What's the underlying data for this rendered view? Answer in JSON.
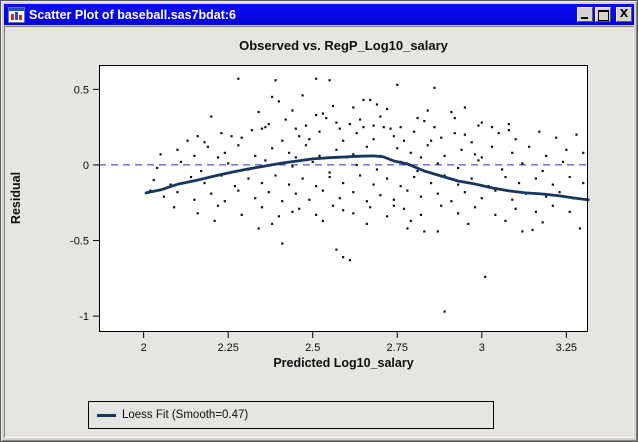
{
  "window": {
    "title": "Scatter Plot of baseball.sas7bdat:6"
  },
  "chart_data": {
    "type": "scatter",
    "title": "Observed vs. RegP_Log10_salary",
    "xlabel": "Predicted Log10_salary",
    "ylabel": "Residual",
    "xlim": [
      1.868,
      3.314
    ],
    "ylim": [
      -1.105,
      0.661
    ],
    "x_ticks": [
      2,
      2.25,
      2.5,
      2.75,
      3,
      3.25
    ],
    "x_tick_labels": [
      "2",
      "2.25",
      "2.5",
      "2.75",
      "3",
      "3.25"
    ],
    "y_ticks": [
      0.5,
      0,
      -0.5,
      -1
    ],
    "y_tick_labels": [
      "0.5",
      "0",
      "-0.5",
      "-1"
    ],
    "grid": false,
    "reference_line_y": 0,
    "legend": {
      "label": "Loess Fit (Smooth=0.47)",
      "position": "bottom-left"
    },
    "colors": {
      "loess": "#17375e",
      "reference": "#2a2ac8",
      "point": "#101010",
      "plot_bg": "#ffffff"
    },
    "series": [
      {
        "name": "Residuals",
        "type": "scatter",
        "points": [
          [
            2.28,
            0.57
          ],
          [
            2.39,
            0.56
          ],
          [
            2.51,
            0.57
          ],
          [
            2.55,
            0.56
          ],
          [
            2.75,
            0.53
          ],
          [
            2.86,
            0.51
          ],
          [
            2.34,
            0.35
          ],
          [
            2.38,
            0.45
          ],
          [
            2.4,
            0.42
          ],
          [
            2.44,
            0.36
          ],
          [
            2.47,
            0.46
          ],
          [
            2.56,
            0.39
          ],
          [
            2.62,
            0.38
          ],
          [
            2.65,
            0.43
          ],
          [
            2.67,
            0.43
          ],
          [
            2.69,
            0.4
          ],
          [
            2.72,
            0.37
          ],
          [
            2.84,
            0.36
          ],
          [
            2.91,
            0.35
          ],
          [
            2.95,
            0.38
          ],
          [
            2.2,
            0.32
          ],
          [
            2.35,
            0.24
          ],
          [
            2.36,
            0.25
          ],
          [
            2.37,
            0.27
          ],
          [
            2.42,
            0.3
          ],
          [
            2.45,
            0.24
          ],
          [
            2.48,
            0.26
          ],
          [
            2.51,
            0.33
          ],
          [
            2.53,
            0.34
          ],
          [
            2.54,
            0.31
          ],
          [
            2.57,
            0.28
          ],
          [
            2.58,
            0.24
          ],
          [
            2.61,
            0.27
          ],
          [
            2.64,
            0.3
          ],
          [
            2.65,
            0.25
          ],
          [
            2.68,
            0.26
          ],
          [
            2.7,
            0.32
          ],
          [
            2.71,
            0.25
          ],
          [
            2.73,
            0.24
          ],
          [
            2.76,
            0.25
          ],
          [
            2.81,
            0.31
          ],
          [
            2.83,
            0.29
          ],
          [
            2.86,
            0.25
          ],
          [
            2.92,
            0.31
          ],
          [
            2.99,
            0.26
          ],
          [
            3.0,
            0.28
          ],
          [
            3.03,
            0.25
          ],
          [
            3.08,
            0.27
          ],
          [
            2.13,
            0.16
          ],
          [
            2.18,
            0.15
          ],
          [
            2.16,
            0.19
          ],
          [
            2.23,
            0.21
          ],
          [
            2.26,
            0.19
          ],
          [
            2.29,
            0.18
          ],
          [
            2.32,
            0.23
          ],
          [
            2.41,
            0.16
          ],
          [
            2.46,
            0.19
          ],
          [
            2.49,
            0.17
          ],
          [
            2.52,
            0.22
          ],
          [
            2.59,
            0.16
          ],
          [
            2.63,
            0.21
          ],
          [
            2.68,
            0.17
          ],
          [
            2.74,
            0.19
          ],
          [
            2.77,
            0.16
          ],
          [
            2.8,
            0.22
          ],
          [
            2.85,
            0.16
          ],
          [
            2.88,
            0.18
          ],
          [
            2.92,
            0.21
          ],
          [
            2.95,
            0.2
          ],
          [
            2.97,
            0.15
          ],
          [
            3.05,
            0.21
          ],
          [
            3.08,
            0.23
          ],
          [
            3.1,
            0.17
          ],
          [
            3.17,
            0.22
          ],
          [
            3.22,
            0.18
          ],
          [
            3.28,
            0.2
          ],
          [
            2.05,
            0.07
          ],
          [
            2.1,
            0.1
          ],
          [
            2.15,
            0.06
          ],
          [
            2.19,
            0.12
          ],
          [
            2.22,
            0.05
          ],
          [
            2.24,
            0.08
          ],
          [
            2.28,
            0.13
          ],
          [
            2.33,
            0.06
          ],
          [
            2.38,
            0.11
          ],
          [
            2.43,
            0.08
          ],
          [
            2.45,
            0.05
          ],
          [
            2.48,
            0.13
          ],
          [
            2.52,
            0.06
          ],
          [
            2.57,
            0.1
          ],
          [
            2.6,
            0.05
          ],
          [
            2.62,
            0.07
          ],
          [
            2.66,
            0.12
          ],
          [
            2.7,
            0.06
          ],
          [
            2.75,
            0.11
          ],
          [
            2.79,
            0.08
          ],
          [
            2.82,
            0.05
          ],
          [
            2.84,
            0.13
          ],
          [
            2.89,
            0.06
          ],
          [
            2.94,
            0.1
          ],
          [
            2.98,
            0.07
          ],
          [
            3.0,
            0.05
          ],
          [
            3.03,
            0.12
          ],
          [
            3.09,
            0.08
          ],
          [
            3.14,
            0.12
          ],
          [
            3.19,
            0.06
          ],
          [
            3.25,
            0.1
          ],
          [
            3.3,
            0.08
          ],
          [
            2.04,
            -0.02
          ],
          [
            2.11,
            0.02
          ],
          [
            2.17,
            -0.04
          ],
          [
            2.25,
            0.01
          ],
          [
            2.31,
            -0.03
          ],
          [
            2.36,
            0.03
          ],
          [
            2.44,
            -0.01
          ],
          [
            2.5,
            0.02
          ],
          [
            2.55,
            -0.05
          ],
          [
            2.63,
            0.0
          ],
          [
            2.69,
            -0.03
          ],
          [
            2.76,
            0.02
          ],
          [
            2.81,
            -0.04
          ],
          [
            2.87,
            0.01
          ],
          [
            2.93,
            -0.02
          ],
          [
            2.99,
            0.03
          ],
          [
            3.06,
            -0.03
          ],
          [
            3.12,
            0.01
          ],
          [
            3.18,
            -0.04
          ],
          [
            3.24,
            0.02
          ],
          [
            2.03,
            -0.1
          ],
          [
            2.08,
            -0.13
          ],
          [
            2.14,
            -0.08
          ],
          [
            2.18,
            -0.12
          ],
          [
            2.23,
            -0.07
          ],
          [
            2.27,
            -0.14
          ],
          [
            2.31,
            -0.09
          ],
          [
            2.35,
            -0.12
          ],
          [
            2.39,
            -0.07
          ],
          [
            2.43,
            -0.13
          ],
          [
            2.47,
            -0.09
          ],
          [
            2.51,
            -0.14
          ],
          [
            2.55,
            -0.08
          ],
          [
            2.59,
            -0.12
          ],
          [
            2.64,
            -0.07
          ],
          [
            2.68,
            -0.13
          ],
          [
            2.72,
            -0.09
          ],
          [
            2.76,
            -0.14
          ],
          [
            2.8,
            -0.08
          ],
          [
            2.85,
            -0.12
          ],
          [
            2.89,
            -0.07
          ],
          [
            2.93,
            -0.13
          ],
          [
            2.97,
            -0.09
          ],
          [
            3.02,
            -0.14
          ],
          [
            3.07,
            -0.08
          ],
          [
            3.11,
            -0.12
          ],
          [
            3.16,
            -0.09
          ],
          [
            3.21,
            -0.13
          ],
          [
            3.26,
            -0.08
          ],
          [
            3.3,
            -0.12
          ],
          [
            2.02,
            -0.17
          ],
          [
            2.06,
            -0.21
          ],
          [
            2.1,
            -0.18
          ],
          [
            2.15,
            -0.23
          ],
          [
            2.2,
            -0.19
          ],
          [
            2.24,
            -0.24
          ],
          [
            2.28,
            -0.17
          ],
          [
            2.33,
            -0.22
          ],
          [
            2.37,
            -0.18
          ],
          [
            2.41,
            -0.24
          ],
          [
            2.45,
            -0.19
          ],
          [
            2.49,
            -0.23
          ],
          [
            2.53,
            -0.17
          ],
          [
            2.58,
            -0.22
          ],
          [
            2.62,
            -0.18
          ],
          [
            2.66,
            -0.24
          ],
          [
            2.7,
            -0.2
          ],
          [
            2.74,
            -0.23
          ],
          [
            2.78,
            -0.17
          ],
          [
            2.82,
            -0.21
          ],
          [
            2.87,
            -0.19
          ],
          [
            2.91,
            -0.24
          ],
          [
            2.95,
            -0.18
          ],
          [
            3.0,
            -0.22
          ],
          [
            3.04,
            -0.17
          ],
          [
            3.09,
            -0.23
          ],
          [
            3.13,
            -0.19
          ],
          [
            3.19,
            -0.21
          ],
          [
            3.23,
            -0.18
          ],
          [
            3.27,
            -0.22
          ],
          [
            2.09,
            -0.28
          ],
          [
            2.16,
            -0.32
          ],
          [
            2.22,
            -0.27
          ],
          [
            2.29,
            -0.33
          ],
          [
            2.35,
            -0.28
          ],
          [
            2.4,
            -0.34
          ],
          [
            2.44,
            -0.31
          ],
          [
            2.46,
            -0.29
          ],
          [
            2.51,
            -0.33
          ],
          [
            2.56,
            -0.27
          ],
          [
            2.59,
            -0.3
          ],
          [
            2.62,
            -0.32
          ],
          [
            2.67,
            -0.28
          ],
          [
            2.72,
            -0.34
          ],
          [
            2.74,
            -0.27
          ],
          [
            2.77,
            -0.29
          ],
          [
            2.82,
            -0.33
          ],
          [
            2.88,
            -0.27
          ],
          [
            2.93,
            -0.32
          ],
          [
            2.98,
            -0.28
          ],
          [
            3.04,
            -0.33
          ],
          [
            3.1,
            -0.29
          ],
          [
            3.16,
            -0.31
          ],
          [
            3.21,
            -0.27
          ],
          [
            3.26,
            -0.31
          ],
          [
            2.21,
            -0.37
          ],
          [
            2.38,
            -0.39
          ],
          [
            2.53,
            -0.37
          ],
          [
            2.66,
            -0.39
          ],
          [
            2.79,
            -0.37
          ],
          [
            2.96,
            -0.39
          ],
          [
            3.07,
            -0.37
          ],
          [
            3.18,
            -0.38
          ],
          [
            2.34,
            -0.42
          ],
          [
            2.41,
            -0.52
          ],
          [
            2.57,
            -0.56
          ],
          [
            2.59,
            -0.61
          ],
          [
            2.61,
            -0.63
          ],
          [
            2.78,
            -0.42
          ],
          [
            2.83,
            -0.44
          ],
          [
            2.87,
            -0.44
          ],
          [
            2.89,
            -0.97
          ],
          [
            3.01,
            -0.74
          ],
          [
            3.12,
            -0.44
          ],
          [
            3.15,
            -0.43
          ],
          [
            3.29,
            -0.42
          ]
        ]
      },
      {
        "name": "Loess Fit (Smooth=0.47)",
        "type": "line",
        "points": [
          [
            2.007,
            -0.185
          ],
          [
            2.05,
            -0.165
          ],
          [
            2.1,
            -0.128
          ],
          [
            2.15,
            -0.105
          ],
          [
            2.21,
            -0.073
          ],
          [
            2.26,
            -0.048
          ],
          [
            2.31,
            -0.026
          ],
          [
            2.36,
            -0.007
          ],
          [
            2.41,
            0.013
          ],
          [
            2.46,
            0.028
          ],
          [
            2.5,
            0.04
          ],
          [
            2.55,
            0.048
          ],
          [
            2.6,
            0.053
          ],
          [
            2.64,
            0.058
          ],
          [
            2.68,
            0.06
          ],
          [
            2.71,
            0.053
          ],
          [
            2.74,
            0.026
          ],
          [
            2.78,
            0.007
          ],
          [
            2.83,
            -0.04
          ],
          [
            2.88,
            -0.073
          ],
          [
            2.93,
            -0.106
          ],
          [
            2.98,
            -0.126
          ],
          [
            3.03,
            -0.152
          ],
          [
            3.08,
            -0.172
          ],
          [
            3.13,
            -0.185
          ],
          [
            3.18,
            -0.192
          ],
          [
            3.23,
            -0.205
          ],
          [
            3.27,
            -0.218
          ],
          [
            3.315,
            -0.231
          ]
        ]
      }
    ]
  }
}
